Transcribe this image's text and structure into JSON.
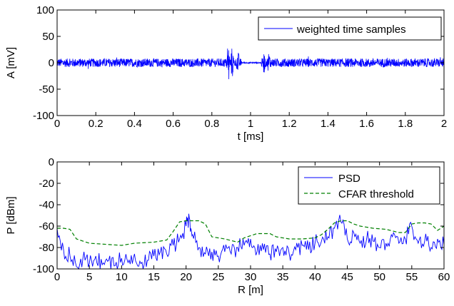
{
  "chart_data": [
    {
      "type": "line",
      "xlabel": "t [ms]",
      "ylabel": "A [mV]",
      "xlim": [
        0,
        2
      ],
      "ylim": [
        -100,
        100
      ],
      "xticks": [
        0,
        0.2,
        0.4,
        0.6,
        0.8,
        1,
        1.2,
        1.4,
        1.6,
        1.8,
        2
      ],
      "xtick_labels": [
        "0",
        "0.2",
        "0.4",
        "0.6",
        "0.8",
        "1",
        "1.2",
        "1.4",
        "1.6",
        "1.8",
        "2"
      ],
      "yticks": [
        -100,
        -50,
        0,
        50,
        100
      ],
      "ytick_labels": [
        "-100",
        "-50",
        "0",
        "50",
        "100"
      ],
      "grid": false,
      "legend_position": "top-right",
      "series": [
        {
          "name": "weighted time samples",
          "color": "#0000ff",
          "style": "solid",
          "noise_amplitude_mV": 8,
          "bursts": [
            {
              "t": 0.885,
              "amplitude_mV": 33
            },
            {
              "t": 0.905,
              "amplitude_mV": 30
            },
            {
              "t": 0.935,
              "amplitude_mV": 22
            },
            {
              "t": 1.07,
              "amplitude_mV": 20
            },
            {
              "t": 1.095,
              "amplitude_mV": 22
            }
          ],
          "quiet_interval": [
            0.955,
            1.055
          ]
        }
      ]
    },
    {
      "type": "line",
      "xlabel": "R [m]",
      "ylabel": "P [dBm]",
      "xlim": [
        0,
        60
      ],
      "ylim": [
        -100,
        0
      ],
      "xticks": [
        0,
        5,
        10,
        15,
        20,
        25,
        30,
        35,
        40,
        45,
        50,
        55,
        60
      ],
      "xtick_labels": [
        "0",
        "5",
        "10",
        "15",
        "20",
        "25",
        "30",
        "35",
        "40",
        "45",
        "50",
        "55",
        "60"
      ],
      "yticks": [
        -100,
        -80,
        -60,
        -40,
        -20,
        0
      ],
      "ytick_labels": [
        "-100",
        "-80",
        "-60",
        "-40",
        "-20",
        "0"
      ],
      "grid": false,
      "legend_position": "top-right",
      "series": [
        {
          "name": "PSD",
          "color": "#0000ff",
          "style": "solid",
          "x": [
            0,
            1,
            2,
            3,
            4,
            5,
            6,
            7,
            8,
            9,
            10,
            11,
            12,
            13,
            14,
            15,
            16,
            17,
            18,
            19,
            20,
            20.5,
            21,
            22,
            23,
            24,
            25,
            26,
            27,
            28,
            29,
            30,
            31,
            32,
            33,
            34,
            35,
            36,
            37,
            38,
            39,
            40,
            41,
            42,
            43,
            44,
            45,
            46,
            47,
            48,
            49,
            50,
            51,
            52,
            53,
            54,
            55,
            56,
            57,
            58,
            59,
            60
          ],
          "values": [
            -62,
            -82,
            -88,
            -98,
            -90,
            -95,
            -88,
            -96,
            -92,
            -97,
            -90,
            -94,
            -86,
            -95,
            -92,
            -88,
            -84,
            -86,
            -78,
            -72,
            -60,
            -52,
            -68,
            -80,
            -86,
            -84,
            -88,
            -84,
            -86,
            -80,
            -78,
            -72,
            -84,
            -82,
            -86,
            -84,
            -80,
            -86,
            -82,
            -78,
            -82,
            -76,
            -74,
            -70,
            -62,
            -56,
            -72,
            -66,
            -76,
            -72,
            -74,
            -80,
            -76,
            -70,
            -76,
            -72,
            -60,
            -76,
            -74,
            -80,
            -72,
            -78
          ]
        },
        {
          "name": "CFAR threshold",
          "color": "#008000",
          "style": "dashed",
          "x": [
            0,
            1,
            2,
            3,
            5,
            10,
            12,
            15,
            17,
            18,
            19,
            20,
            22,
            23,
            24,
            26,
            28,
            29,
            31,
            33,
            34,
            36,
            38,
            40,
            41,
            42,
            43,
            44,
            45,
            46,
            47,
            49,
            51,
            53,
            54,
            55,
            56,
            57,
            58,
            59,
            60
          ],
          "values": [
            -62,
            -62,
            -63,
            -72,
            -76,
            -78,
            -76,
            -75,
            -73,
            -65,
            -56,
            -55,
            -55,
            -58,
            -70,
            -72,
            -75,
            -71,
            -67,
            -67,
            -70,
            -72,
            -72,
            -71,
            -68,
            -63,
            -57,
            -55,
            -55,
            -58,
            -60,
            -62,
            -63,
            -66,
            -66,
            -58,
            -57,
            -57,
            -58,
            -64,
            -60
          ]
        }
      ]
    }
  ]
}
